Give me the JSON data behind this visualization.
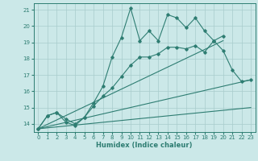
{
  "xlabel": "Humidex (Indice chaleur)",
  "bg_color": "#cbe8e8",
  "grid_color": "#a8cccc",
  "line_color": "#2e7d72",
  "xlim": [
    -0.5,
    23.5
  ],
  "ylim": [
    13.5,
    21.4
  ],
  "xticks": [
    0,
    1,
    2,
    3,
    4,
    5,
    6,
    7,
    8,
    9,
    10,
    11,
    12,
    13,
    14,
    15,
    16,
    17,
    18,
    19,
    20,
    21,
    22,
    23
  ],
  "yticks": [
    14,
    15,
    16,
    17,
    18,
    19,
    20,
    21
  ],
  "series": [
    {
      "x": [
        0,
        1,
        2,
        3,
        4,
        5,
        6,
        7,
        8,
        9,
        10,
        11,
        12,
        13,
        14,
        15,
        16,
        17,
        18,
        19,
        20
      ],
      "y": [
        13.7,
        14.5,
        14.7,
        14.1,
        13.9,
        14.4,
        15.3,
        16.3,
        18.1,
        19.3,
        21.1,
        19.1,
        19.7,
        19.1,
        20.7,
        20.5,
        19.9,
        20.5,
        19.7,
        19.1,
        19.4
      ],
      "marker": true
    },
    {
      "x": [
        0,
        1,
        2,
        3,
        4,
        5,
        6,
        7,
        8,
        9,
        10,
        11,
        12,
        13,
        14,
        15,
        16,
        17,
        18,
        19,
        20,
        21,
        22,
        23
      ],
      "y": [
        13.7,
        14.5,
        14.7,
        14.3,
        14.0,
        14.4,
        15.1,
        15.7,
        16.2,
        16.9,
        17.6,
        18.1,
        18.1,
        18.3,
        18.7,
        18.7,
        18.6,
        18.8,
        18.4,
        19.1,
        18.5,
        17.3,
        16.6,
        16.7
      ],
      "marker": true
    },
    {
      "x": [
        0,
        20
      ],
      "y": [
        13.7,
        19.1
      ],
      "marker": false
    },
    {
      "x": [
        0,
        23
      ],
      "y": [
        13.7,
        16.7
      ],
      "marker": false
    },
    {
      "x": [
        0,
        23
      ],
      "y": [
        13.7,
        15.0
      ],
      "marker": false
    }
  ]
}
